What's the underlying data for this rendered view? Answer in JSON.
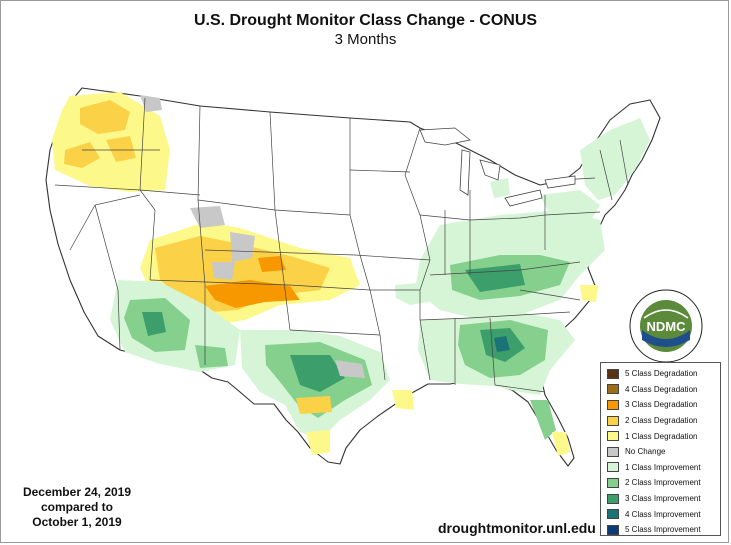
{
  "title": "U.S. Drought Monitor Class Change - CONUS",
  "subtitle": "3 Months",
  "dates": {
    "line1": "December 24, 2019",
    "line2": "compared to",
    "line3": "October 1, 2019"
  },
  "url": "droughtmonitor.unl.edu",
  "logo": {
    "abbreviation": "NDMC",
    "ring_text": "NATIONAL DROUGHT MITIGATION CENTER • UNIVERSITY OF NEBRASKA"
  },
  "legend": [
    {
      "label": "5 Class Degradation",
      "color": "#5a3313"
    },
    {
      "label": "4 Class Degradation",
      "color": "#9c6c16"
    },
    {
      "label": "3 Class Degradation",
      "color": "#f79800"
    },
    {
      "label": "2 Class Degradation",
      "color": "#fbd147"
    },
    {
      "label": "1 Class Degradation",
      "color": "#fdf88a"
    },
    {
      "label": "No Change",
      "color": "#c8c8c8"
    },
    {
      "label": "1 Class Improvement",
      "color": "#d6f5d6"
    },
    {
      "label": "2 Class Improvement",
      "color": "#86d08e"
    },
    {
      "label": "3 Class Improvement",
      "color": "#3c9e6b"
    },
    {
      "label": "4 Class Improvement",
      "color": "#1c7377"
    },
    {
      "label": "5 Class Improvement",
      "color": "#0c3c78"
    }
  ]
}
